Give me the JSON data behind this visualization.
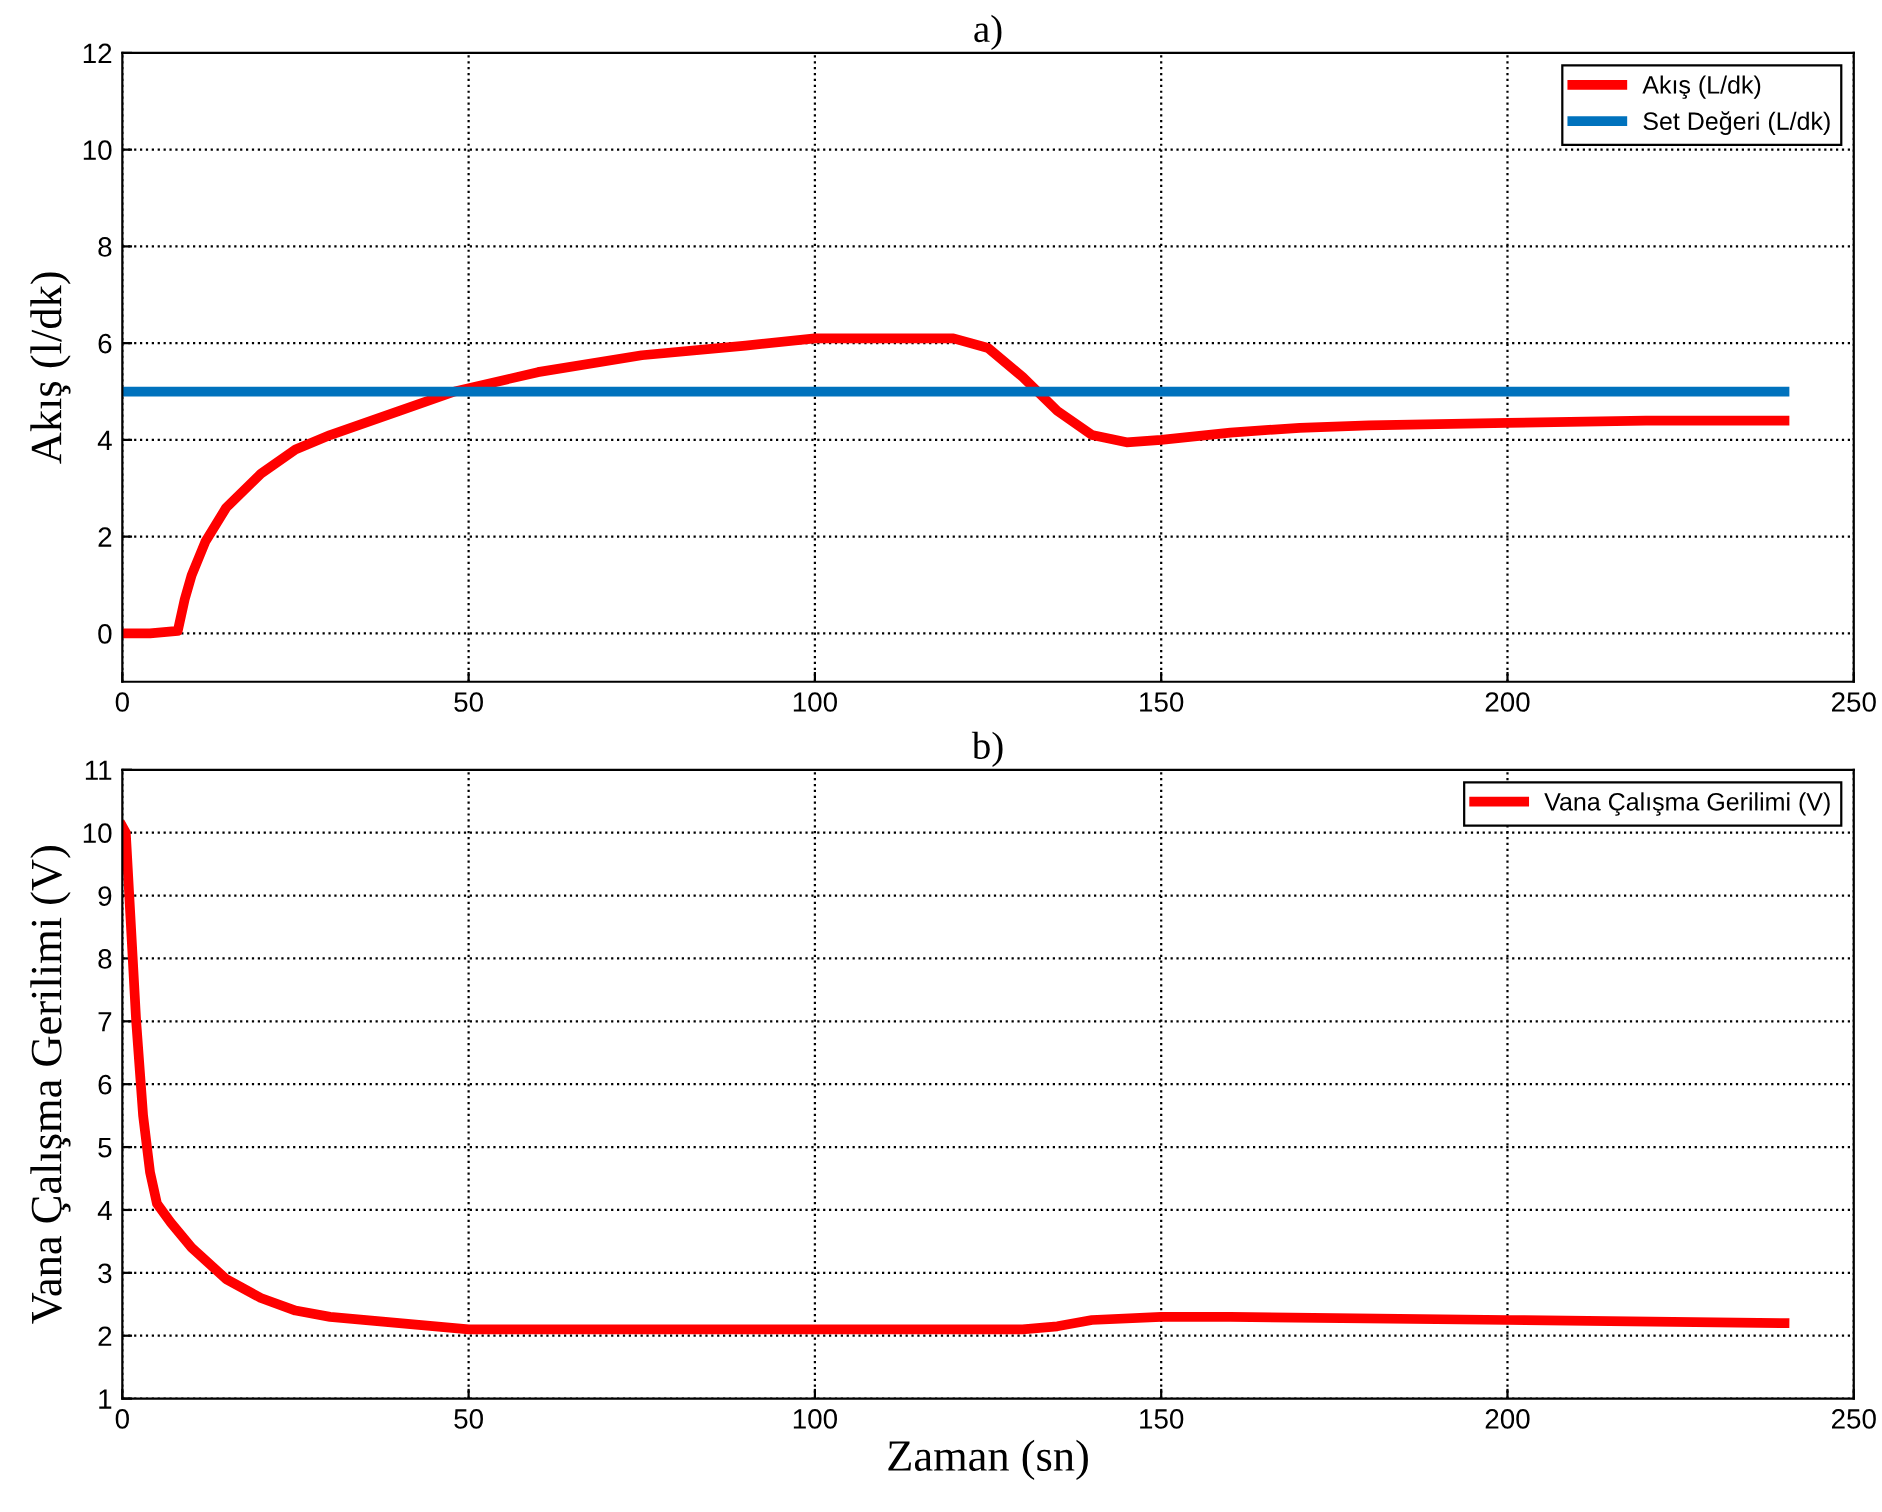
{
  "chart_data": [
    {
      "type": "line",
      "title": "a)",
      "ylabel": "Akış (l/dk)",
      "xlim": [
        0,
        250
      ],
      "xticks": [
        0,
        50,
        100,
        150,
        200,
        250
      ],
      "ylim": [
        -1,
        12
      ],
      "yticks": [
        0,
        2,
        4,
        6,
        8,
        10,
        12
      ],
      "grid": true,
      "legend": "top right",
      "line_style": "solid",
      "series": [
        {
          "name": "Akış (L/dk)",
          "color": "#ff0000",
          "x": [
            0,
            4,
            8,
            9,
            10,
            12,
            15,
            20,
            25,
            30,
            40,
            48,
            60,
            75,
            90,
            100,
            110,
            120,
            125,
            130,
            135,
            140,
            145,
            150,
            160,
            170,
            180,
            200,
            220,
            240
          ],
          "values": [
            0,
            0,
            0.05,
            0.7,
            1.2,
            1.9,
            2.6,
            3.3,
            3.8,
            4.1,
            4.6,
            5.0,
            5.4,
            5.75,
            5.95,
            6.1,
            6.1,
            6.1,
            5.9,
            5.3,
            4.6,
            4.1,
            3.95,
            4.0,
            4.15,
            4.25,
            4.3,
            4.35,
            4.4,
            4.4
          ]
        },
        {
          "name": "Set Değeri (L/dk)",
          "color": "#0072bd",
          "x": [
            0,
            240
          ],
          "values": [
            5,
            5
          ]
        }
      ]
    },
    {
      "type": "line",
      "title": "b)",
      "xlabel": "Zaman (sn)",
      "ylabel": "Vana Çalışma Gerilimi (V)",
      "xlim": [
        0,
        250
      ],
      "xticks": [
        0,
        50,
        100,
        150,
        200,
        250
      ],
      "ylim": [
        1,
        11
      ],
      "yticks": [
        1,
        2,
        3,
        4,
        5,
        6,
        7,
        8,
        9,
        10,
        11
      ],
      "grid": true,
      "legend": "top right",
      "line_style": "solid",
      "series": [
        {
          "name": "Vana Çalışma Gerilimi (V)",
          "color": "#ff0000",
          "x": [
            0,
            0.5,
            1,
            2,
            3,
            4,
            5,
            7,
            10,
            15,
            20,
            25,
            30,
            40,
            50,
            100,
            130,
            135,
            140,
            150,
            160,
            200,
            240
          ],
          "values": [
            10.1,
            10.0,
            9,
            7,
            5.5,
            4.6,
            4.1,
            3.8,
            3.4,
            2.9,
            2.6,
            2.4,
            2.3,
            2.2,
            2.1,
            2.1,
            2.1,
            2.15,
            2.25,
            2.3,
            2.3,
            2.25,
            2.2
          ]
        }
      ]
    }
  ]
}
